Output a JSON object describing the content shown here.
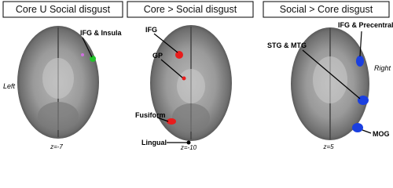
{
  "panels": [
    {
      "title": "Core U Social disgust",
      "labels": [
        "IFG & Insula"
      ],
      "slice": "z=-7"
    },
    {
      "title": "Core > Social disgust",
      "labels": [
        "IFG",
        "GP",
        "Fusiform",
        "Lingual"
      ],
      "slice": "z=-10"
    },
    {
      "title": "Social > Core disgust",
      "labels": [
        "IFG & Precentral",
        "STG & MTG",
        "MOG"
      ],
      "slice": "z=5"
    }
  ],
  "side_labels": {
    "left": "Left",
    "right": "Right"
  }
}
